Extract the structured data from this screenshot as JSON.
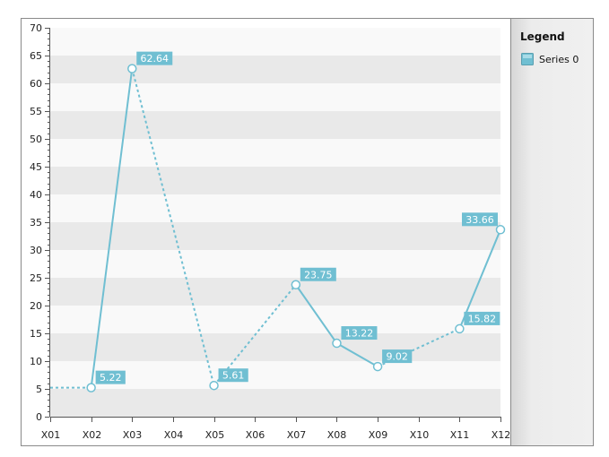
{
  "chart_data": {
    "type": "line",
    "categories": [
      "X01",
      "X02",
      "X03",
      "X04",
      "X05",
      "X06",
      "X07",
      "X08",
      "X09",
      "X10",
      "X11",
      "X12"
    ],
    "series": [
      {
        "name": "Series 0",
        "points": [
          {
            "x": "X02",
            "value": 5.22,
            "label": "5.22"
          },
          {
            "x": "X03",
            "value": 62.64,
            "label": "62.64"
          },
          {
            "x": "X05",
            "value": 5.61,
            "label": "5.61"
          },
          {
            "x": "X07",
            "value": 23.75,
            "label": "23.75"
          },
          {
            "x": "X08",
            "value": 13.22,
            "label": "13.22"
          },
          {
            "x": "X09",
            "value": 9.02,
            "label": "9.02"
          },
          {
            "x": "X11",
            "value": 15.82,
            "label": "15.82"
          },
          {
            "x": "X12",
            "value": 33.66,
            "label": "33.66"
          }
        ],
        "color": "#70bfd2"
      }
    ],
    "ylim": [
      0,
      70
    ],
    "y_ticks": [
      0,
      5,
      10,
      15,
      20,
      25,
      30,
      35,
      40,
      45,
      50,
      55,
      60,
      65,
      70
    ],
    "legend_position": "right",
    "grid": "alternating horizontal bands"
  },
  "legend": {
    "title": "Legend",
    "items": [
      {
        "label": "Series 0",
        "color": "#70bfd2"
      }
    ]
  }
}
